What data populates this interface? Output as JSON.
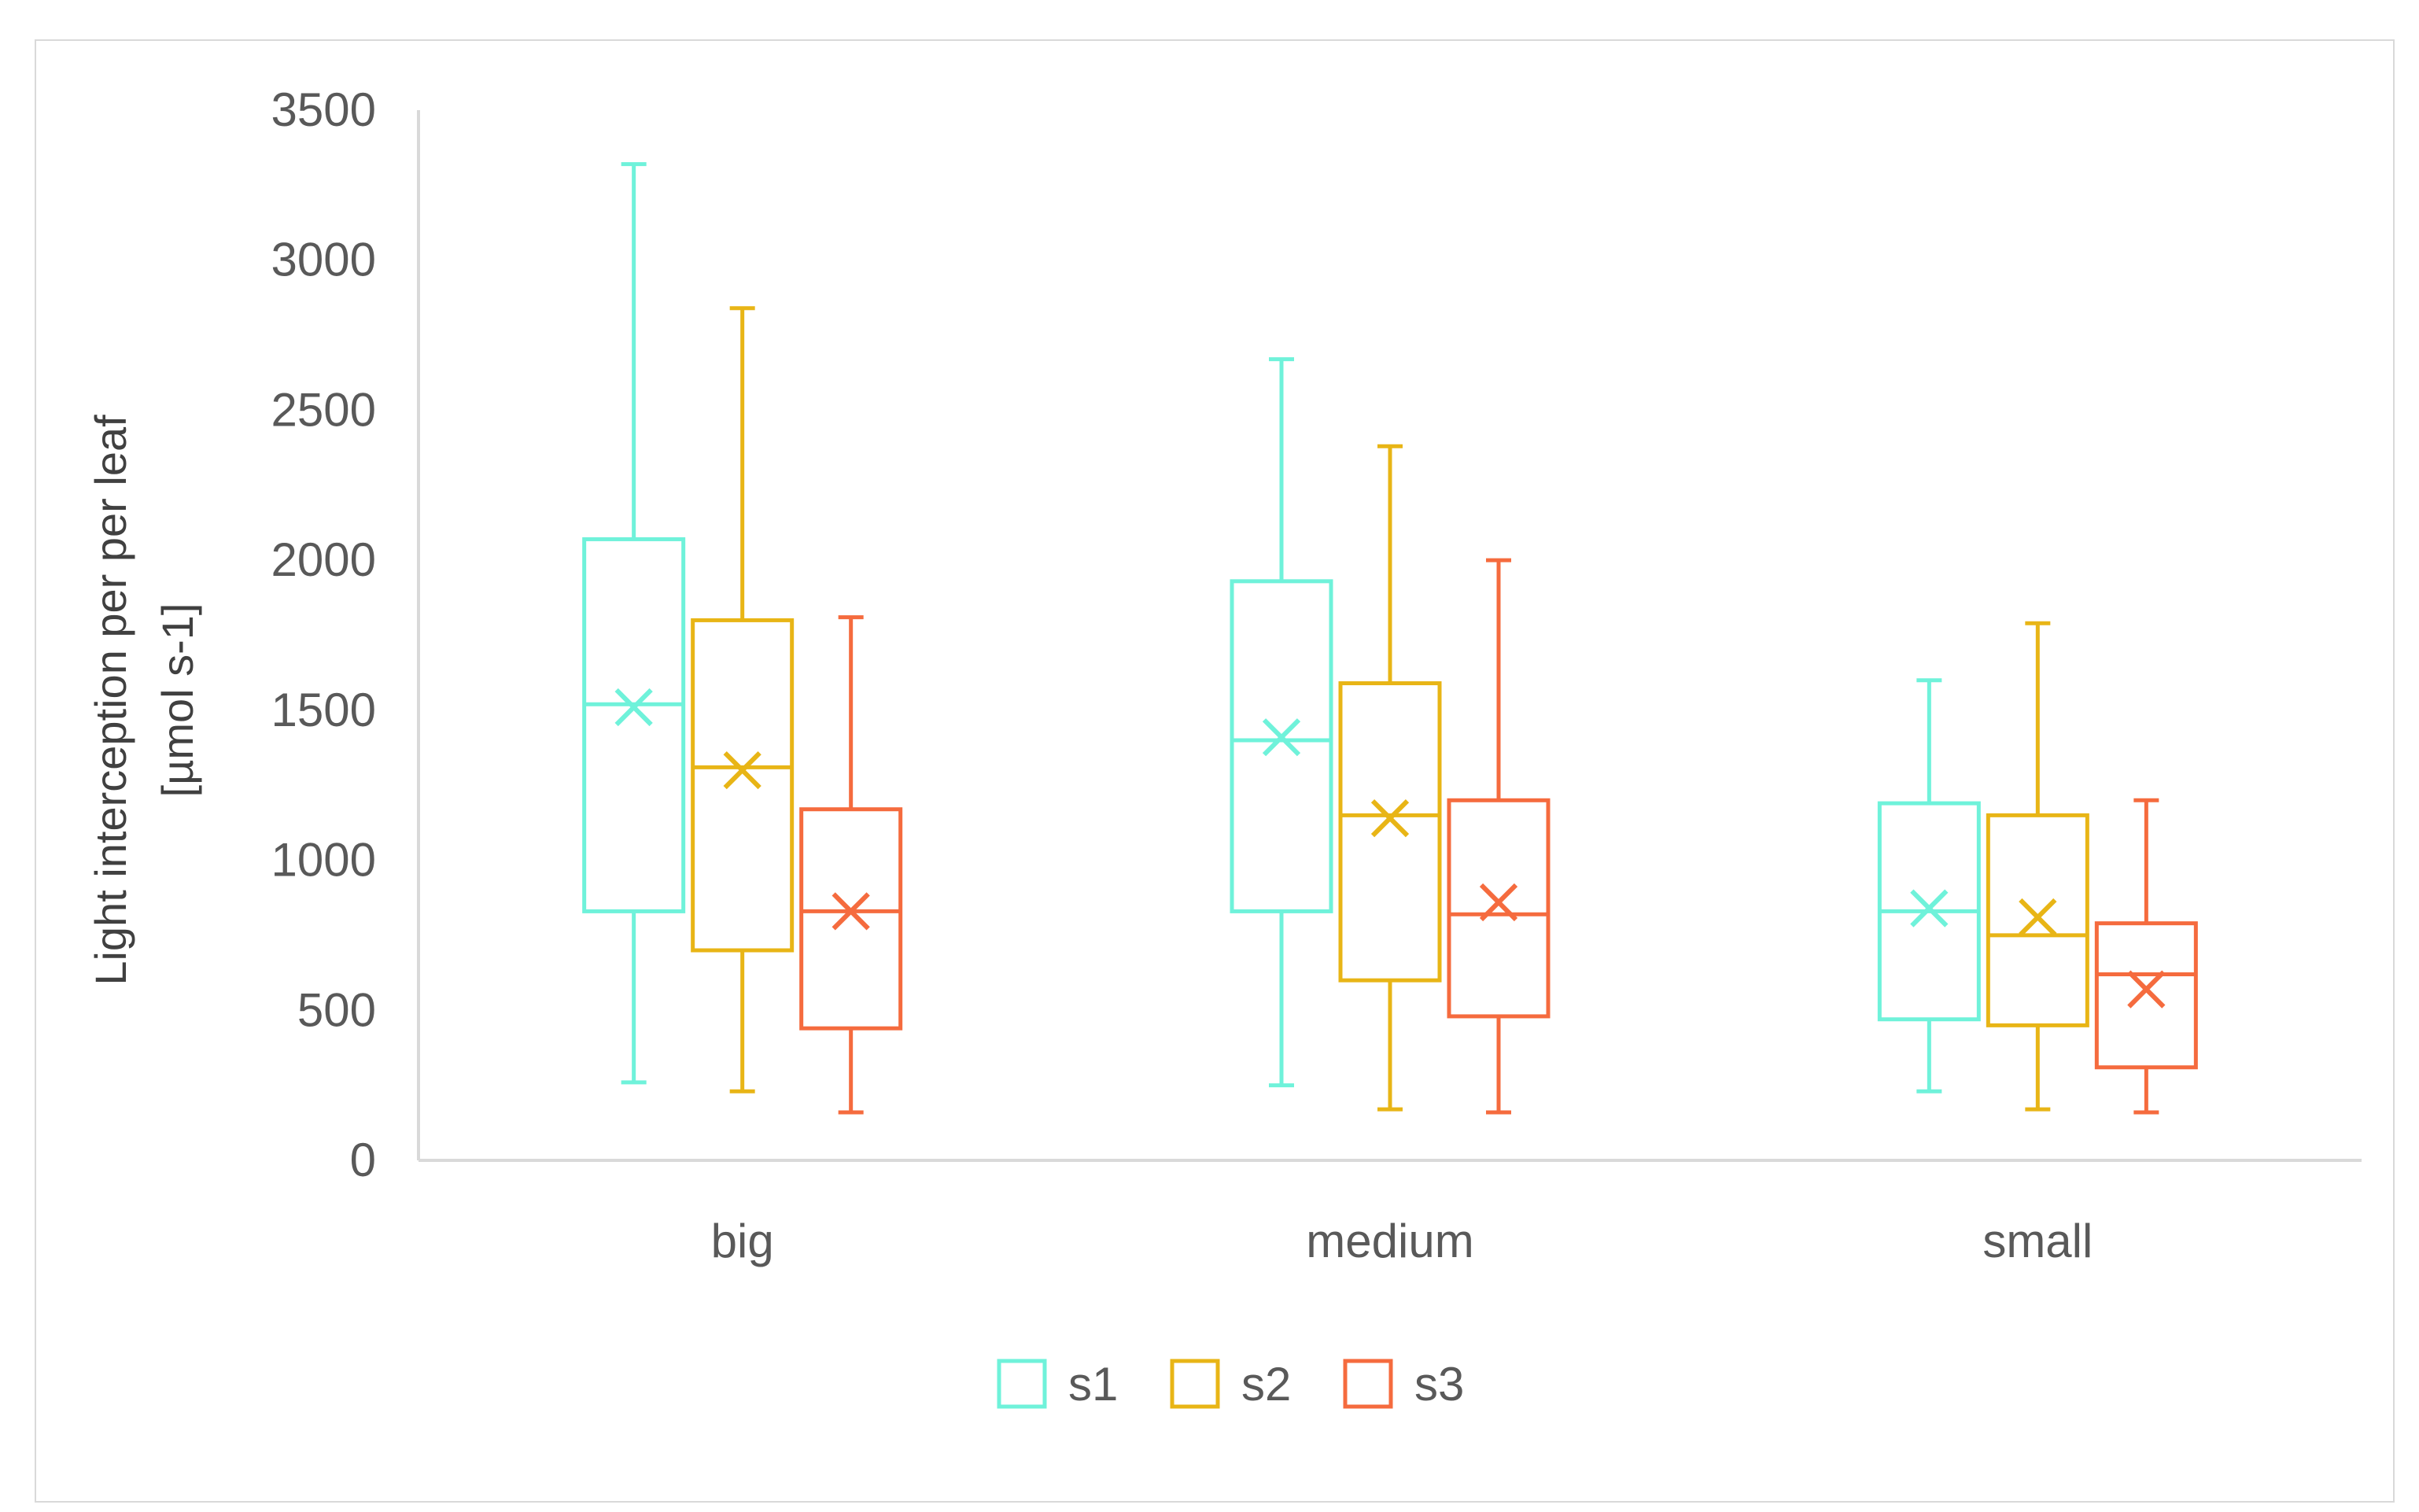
{
  "chart_data": {
    "type": "box",
    "title": "",
    "ylabel_line1": "Light interception per per leaf",
    "ylabel_line2": "[µmol s-1]",
    "ylim": [
      0,
      3500
    ],
    "yticks": [
      0,
      500,
      1000,
      1500,
      2000,
      2500,
      3000,
      3500
    ],
    "grid": false,
    "legend_position": "bottom",
    "categories": [
      "big",
      "medium",
      "small"
    ],
    "series": [
      {
        "name": "s1",
        "color": "#6ff2da",
        "boxes": [
          {
            "min": 260,
            "q1": 830,
            "median": 1520,
            "q3": 2070,
            "max": 3320,
            "mean": 1510
          },
          {
            "min": 250,
            "q1": 830,
            "median": 1400,
            "q3": 1930,
            "max": 2670,
            "mean": 1410
          },
          {
            "min": 230,
            "q1": 470,
            "median": 830,
            "q3": 1190,
            "max": 1600,
            "mean": 840
          }
        ]
      },
      {
        "name": "s2",
        "color": "#e8b516",
        "boxes": [
          {
            "min": 230,
            "q1": 700,
            "median": 1310,
            "q3": 1800,
            "max": 2840,
            "mean": 1300
          },
          {
            "min": 170,
            "q1": 600,
            "median": 1150,
            "q3": 1590,
            "max": 2380,
            "mean": 1140
          },
          {
            "min": 170,
            "q1": 450,
            "median": 750,
            "q3": 1150,
            "max": 1790,
            "mean": 810
          }
        ]
      },
      {
        "name": "s3",
        "color": "#f56b3e",
        "boxes": [
          {
            "min": 160,
            "q1": 440,
            "median": 830,
            "q3": 1170,
            "max": 1810,
            "mean": 830
          },
          {
            "min": 160,
            "q1": 480,
            "median": 820,
            "q3": 1200,
            "max": 2000,
            "mean": 860
          },
          {
            "min": 160,
            "q1": 310,
            "median": 620,
            "q3": 790,
            "max": 1200,
            "mean": 570
          }
        ]
      }
    ]
  }
}
